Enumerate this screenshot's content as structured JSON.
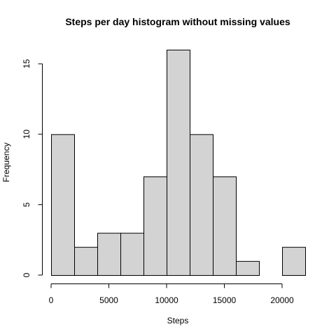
{
  "chart_data": {
    "type": "bar",
    "title": "Steps per day histogram without missing values",
    "xlabel": "Steps",
    "ylabel": "Frequency",
    "bin_edges": [
      0,
      2000,
      4000,
      6000,
      8000,
      10000,
      12000,
      14000,
      16000,
      18000,
      20000,
      22000
    ],
    "values": [
      10,
      2,
      3,
      3,
      7,
      16,
      10,
      7,
      1,
      0,
      2
    ],
    "xlim": [
      0,
      22000
    ],
    "ylim": [
      0,
      16
    ],
    "x_ticks": [
      0,
      5000,
      10000,
      15000,
      20000
    ],
    "x_tick_labels": [
      "0",
      "5000",
      "10000",
      "15000",
      "20000"
    ],
    "y_ticks": [
      0,
      5,
      10,
      15
    ],
    "y_tick_labels": [
      "0",
      "5",
      "10",
      "15"
    ],
    "grid": false,
    "bar_color": "#d3d3d3"
  }
}
